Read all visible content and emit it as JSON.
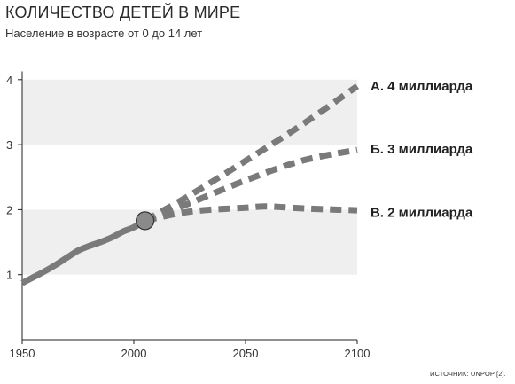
{
  "header": {
    "title": "КОЛИЧЕСТВО ДЕТЕЙ В МИРЕ",
    "subtitle": "Население в возрасте от 0 до 14 лет"
  },
  "source": "ИСТОЧНИК: UNPOP [2].",
  "chart_data": {
    "type": "line",
    "title": "КОЛИЧЕСТВО ДЕТЕЙ В МИРЕ",
    "subtitle": "Население в возрасте от 0 до 14 лет",
    "xlabel": "",
    "ylabel": "",
    "xlim": [
      1950,
      2100
    ],
    "ylim": [
      0,
      4.1
    ],
    "x_ticks": [
      1950,
      2000,
      2050,
      2100
    ],
    "y_ticks": [
      1,
      2,
      3,
      4
    ],
    "background_bands": [
      [
        1,
        2
      ],
      [
        3,
        4
      ]
    ],
    "colors": {
      "line": "#7a7a7a",
      "band": "#efefef",
      "marker_fill": "#8a8a8a",
      "marker_stroke": "#333333"
    },
    "historical": {
      "style": "solid",
      "x": [
        1950,
        1955,
        1960,
        1965,
        1970,
        1975,
        1980,
        1985,
        1990,
        1995,
        2000,
        2005
      ],
      "y": [
        0.87,
        0.96,
        1.05,
        1.15,
        1.26,
        1.37,
        1.44,
        1.5,
        1.57,
        1.66,
        1.73,
        1.83
      ]
    },
    "marker": {
      "x": 2005,
      "y": 1.83
    },
    "scenarios": [
      {
        "name": "А. 4 миллиарда",
        "style": "dashed",
        "x": [
          2005,
          2025,
          2050,
          2075,
          2100
        ],
        "y": [
          1.83,
          2.22,
          2.75,
          3.3,
          3.9
        ]
      },
      {
        "name": "Б. 3 миллиарда",
        "style": "dashed",
        "x": [
          2005,
          2025,
          2050,
          2075,
          2100
        ],
        "y": [
          1.83,
          2.1,
          2.45,
          2.75,
          2.92
        ]
      },
      {
        "name": "В. 2 миллиарда",
        "style": "dashed",
        "x": [
          2005,
          2025,
          2050,
          2060,
          2075,
          2100
        ],
        "y": [
          1.83,
          1.97,
          2.03,
          2.05,
          2.02,
          1.99
        ]
      }
    ]
  }
}
